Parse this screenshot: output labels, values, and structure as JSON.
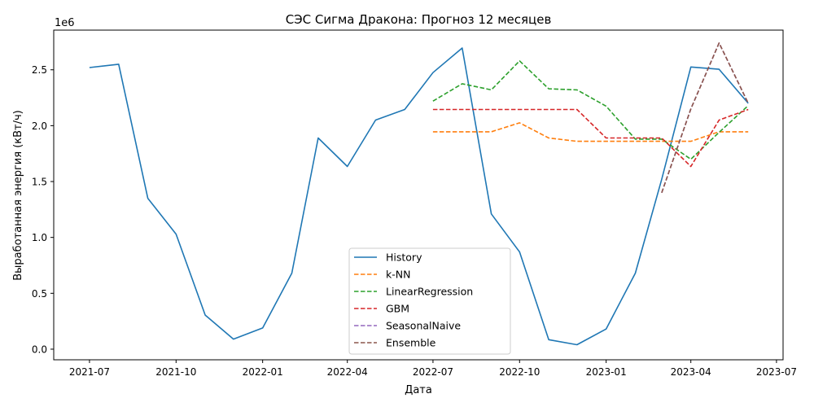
{
  "chart_data": {
    "type": "line",
    "title": "СЭС Сигма Дракона: Прогноз 12 месяцев",
    "xlabel": "Дата",
    "ylabel": "Выработанная энергия (кВт/ч)",
    "y_offset_label": "1e6",
    "x_ticks": [
      "2021-07",
      "2021-10",
      "2022-01",
      "2022-04",
      "2022-07",
      "2022-10",
      "2023-01",
      "2023-04",
      "2023-07"
    ],
    "y_ticks": [
      "0.0",
      "0.5",
      "1.0",
      "1.5",
      "2.0",
      "2.5"
    ],
    "y_tick_values": [
      0,
      500000,
      1000000,
      1500000,
      2000000,
      2500000
    ],
    "ylim": [
      -95000,
      2855000
    ],
    "xlim": [
      "2021-05-24",
      "2023-07-08"
    ],
    "grid": false,
    "legend_position": "lower-center",
    "series": [
      {
        "name": "History",
        "color": "#1f77b4",
        "style": "solid",
        "x": [
          "2021-07-01",
          "2021-08-01",
          "2021-09-01",
          "2021-10-01",
          "2021-11-01",
          "2021-12-01",
          "2022-01-01",
          "2022-02-01",
          "2022-03-01",
          "2022-04-01",
          "2022-05-01",
          "2022-06-01",
          "2022-07-01",
          "2022-08-01",
          "2022-09-01",
          "2022-10-01",
          "2022-11-01",
          "2022-12-01",
          "2023-01-01",
          "2023-02-01",
          "2023-03-01",
          "2023-04-01",
          "2023-05-01",
          "2023-06-01"
        ],
        "values": [
          2520000,
          2550000,
          1350000,
          1030000,
          305000,
          90000,
          190000,
          680000,
          1890000,
          1635000,
          2050000,
          2145000,
          2475000,
          2695000,
          1210000,
          870000,
          85000,
          40000,
          180000,
          680000,
          1520000,
          2525000,
          2505000,
          2200000
        ]
      },
      {
        "name": "k-NN",
        "color": "#ff7f0e",
        "style": "dashed",
        "x": [
          "2022-07-01",
          "2022-08-01",
          "2022-09-01",
          "2022-10-01",
          "2022-11-01",
          "2022-12-01",
          "2023-01-01",
          "2023-02-01",
          "2023-03-01",
          "2023-04-01",
          "2023-05-01",
          "2023-06-01"
        ],
        "values": [
          1945000,
          1945000,
          1945000,
          2025000,
          1890000,
          1860000,
          1860000,
          1860000,
          1860000,
          1860000,
          1945000,
          1945000
        ]
      },
      {
        "name": "LinearRegression",
        "color": "#2ca02c",
        "style": "dashed",
        "x": [
          "2022-07-01",
          "2022-08-01",
          "2022-09-01",
          "2022-10-01",
          "2022-11-01",
          "2022-12-01",
          "2023-01-01",
          "2023-02-01",
          "2023-03-01",
          "2023-04-01",
          "2023-05-01",
          "2023-06-01"
        ],
        "values": [
          2220000,
          2375000,
          2320000,
          2580000,
          2330000,
          2320000,
          2175000,
          1880000,
          1880000,
          1700000,
          1940000,
          2180000
        ]
      },
      {
        "name": "GBM",
        "color": "#d62728",
        "style": "dashed",
        "x": [
          "2022-07-01",
          "2022-08-01",
          "2022-09-01",
          "2022-10-01",
          "2022-11-01",
          "2022-12-01",
          "2023-01-01",
          "2023-02-01",
          "2023-03-01",
          "2023-04-01",
          "2023-05-01",
          "2023-06-01"
        ],
        "values": [
          2145000,
          2145000,
          2145000,
          2145000,
          2145000,
          2145000,
          1890000,
          1890000,
          1890000,
          1635000,
          2050000,
          2145000
        ]
      },
      {
        "name": "SeasonalNaive",
        "color": "#9467bd",
        "style": "dashed",
        "x": [
          "2023-03-01",
          "2023-04-01",
          "2023-05-01",
          "2023-06-01"
        ],
        "values": [
          1400000,
          2150000,
          2740000,
          2200000
        ]
      },
      {
        "name": "Ensemble",
        "color": "#8c564b",
        "style": "dashed",
        "x": [
          "2023-03-01",
          "2023-04-01",
          "2023-05-01",
          "2023-06-01"
        ],
        "values": [
          1400000,
          2150000,
          2740000,
          2200000
        ]
      }
    ]
  }
}
